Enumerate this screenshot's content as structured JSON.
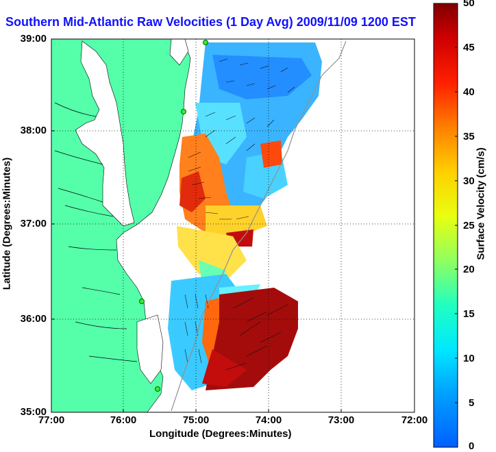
{
  "title": "Southern Mid-Atlantic Raw Velocities (1 Day Avg) 2009/11/09 1200 EST",
  "xlabel": "Longitude (Degrees:Minutes)",
  "ylabel": "Latitude (Degrees:Minutes)",
  "x_ticks": [
    "77:00",
    "76:00",
    "75:00",
    "74:00",
    "73:00",
    "72:00"
  ],
  "y_ticks": [
    "39:00",
    "38:00",
    "37:00",
    "36:00",
    "35:00"
  ],
  "colorbar": {
    "label": "Surface Velocity (cm/s)",
    "ticks": [
      "50",
      "45",
      "40",
      "35",
      "30",
      "25",
      "20",
      "15",
      "10",
      "5",
      "0"
    ],
    "range": [
      0,
      50
    ],
    "colors": [
      "#0040ff",
      "#00c0ff",
      "#00ffe0",
      "#40ff80",
      "#c0ff20",
      "#ffff00",
      "#ffc000",
      "#ff6000",
      "#ff0000",
      "#c00000",
      "#800000"
    ]
  },
  "map": {
    "land_color": "#55ffaa",
    "ocean_color": "#ffffff",
    "lon_range": [
      -77,
      -72
    ],
    "lat_range": [
      35,
      39
    ],
    "grid": true
  }
}
